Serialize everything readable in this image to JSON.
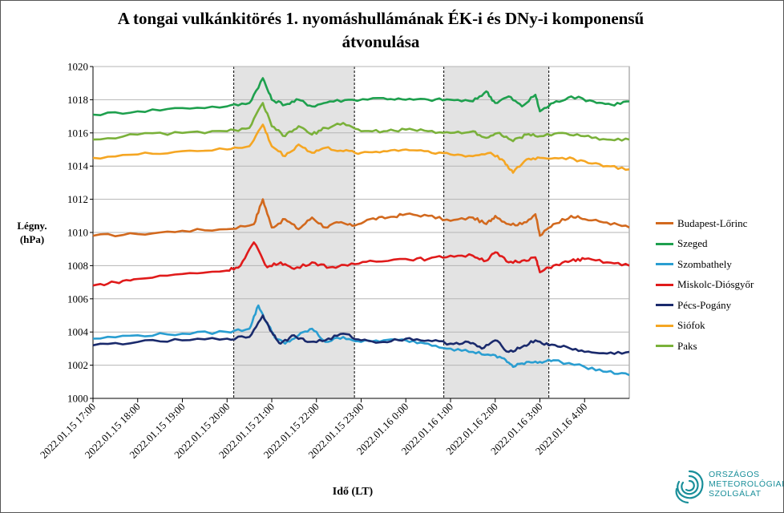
{
  "chart_data": {
    "type": "line",
    "title_line1": "A tongai vulkánkitörés 1. nyomáshullámának  ÉK-i és DNy-i komponensű",
    "title_line2": "átvonulása",
    "ylabel_line1": "Légny.",
    "ylabel_line2": "(hPa)",
    "xlabel": "Idő (LT)",
    "ylim": [
      1000,
      1020
    ],
    "yticks": [
      "1000",
      "1002",
      "1004",
      "1006",
      "1008",
      "1010",
      "1012",
      "1014",
      "1016",
      "1018",
      "1020"
    ],
    "xlim_hours": [
      17,
      29
    ],
    "xtick_labels": [
      "2022.01.15 17:00",
      "2022.01.15 18:00",
      "2022.01.15 19:00",
      "2022.01.15 20:00",
      "2022.01.15 21:00",
      "2022.01.15 22:00",
      "2022.01.15 23:00",
      "2022.01.16 0:00",
      "2022.01.16 1:00",
      "2022.01.16 2:00",
      "2022.01.16 3:00",
      "2022.01.16 4:00"
    ],
    "shaded_bands_hours": [
      [
        20.15,
        22.85
      ],
      [
        24.85,
        27.2
      ]
    ],
    "series": [
      {
        "name": "Budapest-Lőrinc",
        "color": "#d2691e",
        "points": [
          [
            17,
            1009.8
          ],
          [
            18,
            1009.9
          ],
          [
            19,
            1010.1
          ],
          [
            20,
            1010.2
          ],
          [
            20.6,
            1010.5
          ],
          [
            20.8,
            1012
          ],
          [
            21,
            1010.3
          ],
          [
            21.3,
            1010.8
          ],
          [
            21.6,
            1010.2
          ],
          [
            21.9,
            1010.9
          ],
          [
            22.2,
            1010.3
          ],
          [
            22.5,
            1010.6
          ],
          [
            22.8,
            1010.4
          ],
          [
            23.2,
            1010.8
          ],
          [
            23.6,
            1010.9
          ],
          [
            24,
            1011.1
          ],
          [
            24.5,
            1011
          ],
          [
            25,
            1010.7
          ],
          [
            25.5,
            1010.9
          ],
          [
            25.8,
            1010.5
          ],
          [
            26,
            1011
          ],
          [
            26.3,
            1010.5
          ],
          [
            26.6,
            1010.5
          ],
          [
            26.9,
            1011.1
          ],
          [
            27,
            1009.8
          ],
          [
            27.3,
            1010.5
          ],
          [
            27.7,
            1011
          ],
          [
            28,
            1010.8
          ],
          [
            28.5,
            1010.6
          ],
          [
            29,
            1010.3
          ]
        ]
      },
      {
        "name": "Szeged",
        "color": "#1ea04e",
        "points": [
          [
            17,
            1017.1
          ],
          [
            18,
            1017.3
          ],
          [
            19,
            1017.5
          ],
          [
            20,
            1017.6
          ],
          [
            20.5,
            1017.8
          ],
          [
            20.8,
            1019.3
          ],
          [
            21,
            1018
          ],
          [
            21.3,
            1017.7
          ],
          [
            21.6,
            1018
          ],
          [
            21.9,
            1017.6
          ],
          [
            22.3,
            1017.9
          ],
          [
            22.8,
            1018
          ],
          [
            23.5,
            1018.1
          ],
          [
            24,
            1018
          ],
          [
            24.5,
            1018
          ],
          [
            25,
            1018
          ],
          [
            25.5,
            1017.9
          ],
          [
            25.8,
            1018.5
          ],
          [
            26,
            1017.8
          ],
          [
            26.3,
            1018.2
          ],
          [
            26.6,
            1017.6
          ],
          [
            26.9,
            1018.3
          ],
          [
            27,
            1017.3
          ],
          [
            27.3,
            1017.8
          ],
          [
            27.7,
            1018.2
          ],
          [
            28.2,
            1017.9
          ],
          [
            28.6,
            1017.7
          ],
          [
            29,
            1017.9
          ]
        ]
      },
      {
        "name": "Szombathely",
        "color": "#2a9ed1",
        "points": [
          [
            17,
            1003.6
          ],
          [
            18,
            1003.8
          ],
          [
            19,
            1003.9
          ],
          [
            20,
            1004
          ],
          [
            20.5,
            1004.2
          ],
          [
            20.7,
            1005.6
          ],
          [
            20.9,
            1004.5
          ],
          [
            21.1,
            1003.6
          ],
          [
            21.3,
            1003.3
          ],
          [
            21.6,
            1003.8
          ],
          [
            21.9,
            1004.2
          ],
          [
            22.2,
            1003.4
          ],
          [
            22.6,
            1003.7
          ],
          [
            23,
            1003.4
          ],
          [
            23.5,
            1003.5
          ],
          [
            24,
            1003.5
          ],
          [
            24.5,
            1003.3
          ],
          [
            25,
            1003
          ],
          [
            25.5,
            1002.8
          ],
          [
            25.9,
            1002.6
          ],
          [
            26.2,
            1002.4
          ],
          [
            26.4,
            1001.9
          ],
          [
            26.7,
            1002.2
          ],
          [
            27,
            1002.2
          ],
          [
            27.3,
            1002.3
          ],
          [
            28,
            1001.9
          ],
          [
            28.5,
            1001.6
          ],
          [
            29,
            1001.4
          ]
        ]
      },
      {
        "name": "Miskolc-Diósgyőr",
        "color": "#e01b1b",
        "points": [
          [
            17,
            1006.8
          ],
          [
            17.5,
            1007
          ],
          [
            18,
            1007.2
          ],
          [
            19,
            1007.5
          ],
          [
            20,
            1007.7
          ],
          [
            20.3,
            1008
          ],
          [
            20.6,
            1009.4
          ],
          [
            20.9,
            1007.9
          ],
          [
            21.2,
            1008.2
          ],
          [
            21.5,
            1007.8
          ],
          [
            21.9,
            1008.2
          ],
          [
            22.3,
            1007.9
          ],
          [
            22.7,
            1008
          ],
          [
            23.2,
            1008.3
          ],
          [
            24,
            1008.4
          ],
          [
            24.5,
            1008.4
          ],
          [
            25,
            1008.6
          ],
          [
            25.5,
            1008.6
          ],
          [
            25.8,
            1008.3
          ],
          [
            26,
            1008.8
          ],
          [
            26.3,
            1008.2
          ],
          [
            26.6,
            1008.3
          ],
          [
            26.9,
            1008.5
          ],
          [
            27,
            1007.6
          ],
          [
            27.3,
            1008
          ],
          [
            27.7,
            1008.3
          ],
          [
            28,
            1008.4
          ],
          [
            28.5,
            1008.2
          ],
          [
            29,
            1008
          ]
        ]
      },
      {
        "name": "Pécs-Pogány",
        "color": "#1a2a6c",
        "points": [
          [
            17,
            1003.2
          ],
          [
            18,
            1003.4
          ],
          [
            19,
            1003.5
          ],
          [
            20,
            1003.6
          ],
          [
            20.5,
            1003.7
          ],
          [
            20.8,
            1005
          ],
          [
            21,
            1004
          ],
          [
            21.2,
            1003.3
          ],
          [
            21.5,
            1003.8
          ],
          [
            21.8,
            1003.4
          ],
          [
            22.2,
            1003.5
          ],
          [
            22.6,
            1003.9
          ],
          [
            23,
            1003.5
          ],
          [
            23.5,
            1003.4
          ],
          [
            24,
            1003.6
          ],
          [
            24.5,
            1003.5
          ],
          [
            25,
            1003.3
          ],
          [
            25.4,
            1003.4
          ],
          [
            25.7,
            1003
          ],
          [
            26,
            1003.5
          ],
          [
            26.3,
            1002.8
          ],
          [
            26.6,
            1003.1
          ],
          [
            26.9,
            1003.5
          ],
          [
            27.2,
            1003.2
          ],
          [
            27.6,
            1003.1
          ],
          [
            28,
            1002.8
          ],
          [
            28.5,
            1002.7
          ],
          [
            29,
            1002.8
          ]
        ]
      },
      {
        "name": "Siófok",
        "color": "#f5a623",
        "points": [
          [
            17,
            1014.5
          ],
          [
            18,
            1014.7
          ],
          [
            19,
            1014.9
          ],
          [
            20,
            1015
          ],
          [
            20.5,
            1015.2
          ],
          [
            20.8,
            1016.5
          ],
          [
            21,
            1015.2
          ],
          [
            21.3,
            1014.6
          ],
          [
            21.6,
            1015.3
          ],
          [
            21.9,
            1014.8
          ],
          [
            22.2,
            1015.1
          ],
          [
            22.6,
            1014.9
          ],
          [
            23,
            1014.8
          ],
          [
            23.5,
            1014.9
          ],
          [
            24,
            1015
          ],
          [
            24.5,
            1014.9
          ],
          [
            25,
            1014.7
          ],
          [
            25.5,
            1014.6
          ],
          [
            25.9,
            1014.8
          ],
          [
            26.2,
            1014.3
          ],
          [
            26.4,
            1013.6
          ],
          [
            26.7,
            1014.4
          ],
          [
            27,
            1014.5
          ],
          [
            27.5,
            1014.5
          ],
          [
            28,
            1014.3
          ],
          [
            28.5,
            1014
          ],
          [
            29,
            1013.8
          ]
        ]
      },
      {
        "name": "Paks",
        "color": "#7ab13a",
        "points": [
          [
            17,
            1015.6
          ],
          [
            18,
            1015.9
          ],
          [
            19,
            1016
          ],
          [
            20,
            1016.1
          ],
          [
            20.5,
            1016.3
          ],
          [
            20.8,
            1017.8
          ],
          [
            21,
            1016.4
          ],
          [
            21.3,
            1015.8
          ],
          [
            21.6,
            1016.4
          ],
          [
            21.9,
            1015.9
          ],
          [
            22.2,
            1016.3
          ],
          [
            22.6,
            1016.6
          ],
          [
            23,
            1016.1
          ],
          [
            23.5,
            1016.1
          ],
          [
            24,
            1016.2
          ],
          [
            24.5,
            1016.1
          ],
          [
            25,
            1016
          ],
          [
            25.5,
            1016.1
          ],
          [
            25.8,
            1015.7
          ],
          [
            26.1,
            1016
          ],
          [
            26.4,
            1015.5
          ],
          [
            26.7,
            1015.9
          ],
          [
            27,
            1015.8
          ],
          [
            27.5,
            1016
          ],
          [
            28,
            1015.8
          ],
          [
            28.5,
            1015.6
          ],
          [
            29,
            1015.6
          ]
        ]
      }
    ],
    "legend_position": "right"
  },
  "logo": {
    "line1": "ORSZÁGOS",
    "line2": "METEOROLÓGIAI",
    "line3": "SZOLGÁLAT",
    "color": "#1a8f9a"
  }
}
